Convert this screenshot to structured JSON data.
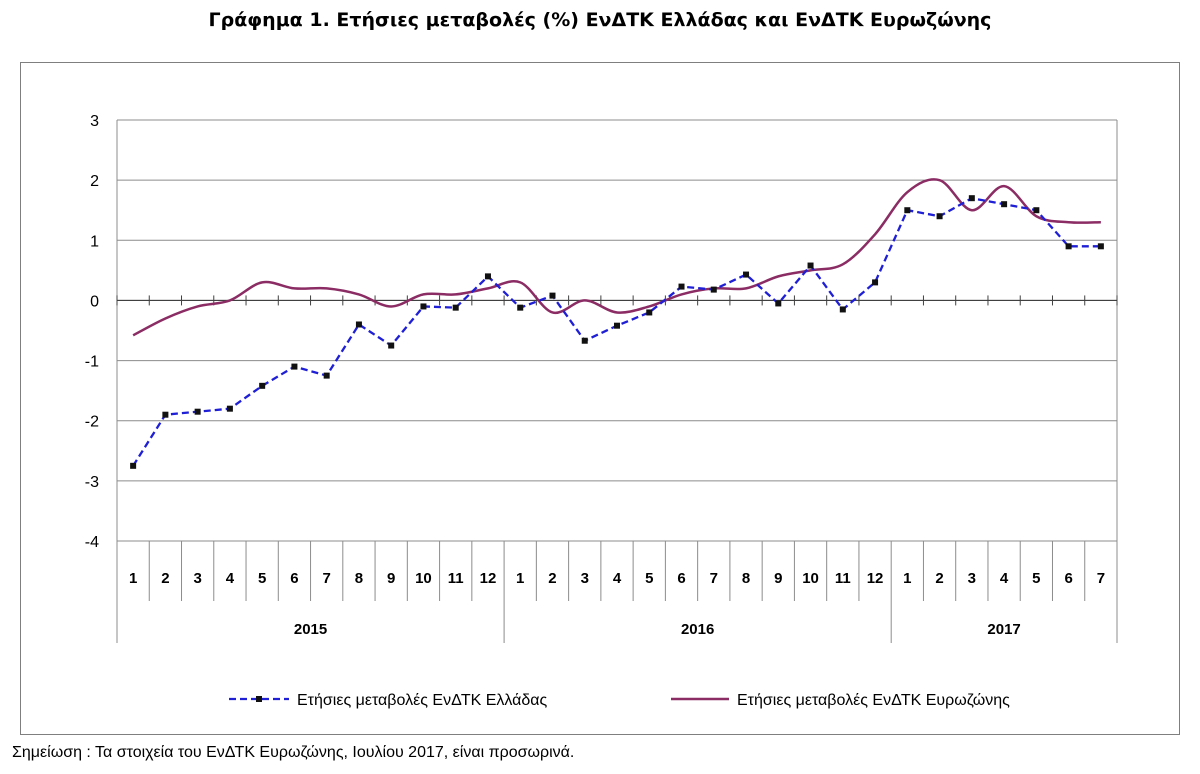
{
  "chart_data": {
    "type": "line",
    "title": "Γράφημα 1. Ετήσιες μεταβολές (%) ΕνΔΤΚ Ελλάδας και ΕνΔΤΚ Ευρωζώνης",
    "xlabel": "",
    "ylabel": "",
    "ylim": [
      -4,
      3
    ],
    "yticks": [
      "3",
      "2",
      "1",
      "0",
      "-1",
      "-2",
      "-3",
      "-4"
    ],
    "grid": true,
    "legend_position": "bottom",
    "categories": [
      "1",
      "2",
      "3",
      "4",
      "5",
      "6",
      "7",
      "8",
      "9",
      "10",
      "11",
      "12",
      "1",
      "2",
      "3",
      "4",
      "5",
      "6",
      "7",
      "8",
      "9",
      "10",
      "11",
      "12",
      "1",
      "2",
      "3",
      "4",
      "5",
      "6",
      "7"
    ],
    "years": [
      {
        "label": "2015",
        "months": 12
      },
      {
        "label": "2016",
        "months": 12
      },
      {
        "label": "2017",
        "months": 7
      }
    ],
    "series": [
      {
        "name": "Ετήσιες μεταβολές ΕνΔΤΚ Ελλάδας",
        "color": "#1f1fd6",
        "style": "dashed-markers",
        "values": [
          -2.75,
          -1.9,
          -1.85,
          -1.8,
          -1.42,
          -1.1,
          -1.25,
          -0.4,
          -0.75,
          -0.1,
          -0.12,
          0.4,
          -0.12,
          0.08,
          -0.67,
          -0.42,
          -0.2,
          0.23,
          0.18,
          0.43,
          -0.05,
          0.58,
          -0.15,
          0.3,
          1.5,
          1.4,
          1.7,
          1.6,
          1.5,
          0.9,
          0.9
        ]
      },
      {
        "name": "Ετήσιες μεταβολές ΕνΔΤΚ Ευρωζώνης",
        "color": "#8b2c64",
        "style": "smooth",
        "values": [
          -0.58,
          -0.3,
          -0.1,
          0.0,
          0.3,
          0.2,
          0.2,
          0.1,
          -0.1,
          0.1,
          0.1,
          0.2,
          0.3,
          -0.2,
          0.0,
          -0.2,
          -0.1,
          0.1,
          0.2,
          0.2,
          0.4,
          0.5,
          0.6,
          1.1,
          1.8,
          2.0,
          1.5,
          1.9,
          1.4,
          1.3,
          1.3
        ]
      }
    ]
  },
  "note": "Σημείωση :  Τα στοιχεία του ΕνΔΤΚ Ευρωζώνης, Ιουλίου 2017, είναι προσωρινά."
}
